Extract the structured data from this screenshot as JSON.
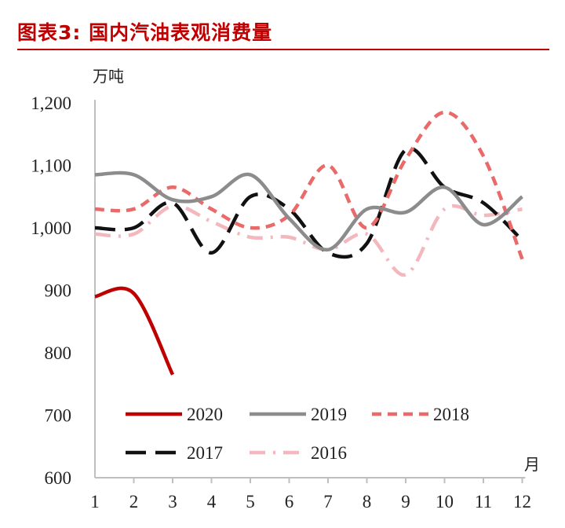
{
  "header": {
    "title": "图表3: 国内汽油表观消费量"
  },
  "chart_data": {
    "type": "line",
    "ylabel": "万吨",
    "xlabel": "月",
    "ylim": [
      600,
      1200
    ],
    "yticks": [
      "600",
      "700",
      "800",
      "900",
      "1,000",
      "1,100",
      "1,200"
    ],
    "categories": [
      "1",
      "2",
      "3",
      "4",
      "5",
      "6",
      "7",
      "8",
      "9",
      "10",
      "11",
      "12"
    ],
    "grid": false,
    "legend_position": "bottom-inside",
    "series": [
      {
        "name": "2020",
        "color": "#c00000",
        "dash": "solid",
        "values": [
          890,
          895,
          765,
          null,
          null,
          null,
          null,
          null,
          null,
          null,
          null,
          null
        ]
      },
      {
        "name": "2019",
        "color": "#8c8c8c",
        "dash": "solid",
        "values": [
          1085,
          1085,
          1045,
          1050,
          1085,
          1015,
          965,
          1030,
          1025,
          1065,
          1005,
          1050
        ]
      },
      {
        "name": "2018",
        "color": "#ea6a6a",
        "dash": "dashed",
        "values": [
          1030,
          1030,
          1065,
          1030,
          1000,
          1020,
          1100,
          1000,
          1110,
          1185,
          1115,
          950
        ]
      },
      {
        "name": "2017",
        "color": "#111111",
        "dash": "longdash",
        "values": [
          1000,
          1000,
          1040,
          960,
          1050,
          1030,
          960,
          975,
          1125,
          1065,
          1040,
          980
        ]
      },
      {
        "name": "2016",
        "color": "#f2b8be",
        "dash": "dashdot",
        "values": [
          990,
          990,
          1035,
          1010,
          985,
          985,
          965,
          990,
          925,
          1030,
          1020,
          1030
        ]
      }
    ]
  }
}
